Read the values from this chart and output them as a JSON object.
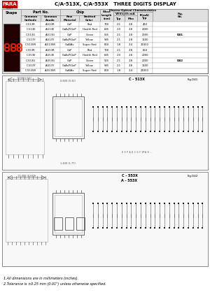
{
  "title": "C/A-513X, C/A-553X   THREE DIGITS DISPLAY",
  "company": "PARA",
  "bg_color": "#ffffff",
  "rows_d41": [
    [
      "C-513R",
      "A-513R",
      "GaP",
      "Red",
      "700",
      "2.1",
      "2.8",
      "450",
      "D41"
    ],
    [
      "C-513E",
      "A-513E",
      "GaAsP/GaP",
      "Health Red",
      "635",
      "2.0",
      "2.8",
      "2000",
      ""
    ],
    [
      "C-513G",
      "A-513G",
      "GaP",
      "Green",
      "565",
      "2.1",
      "2.8",
      "2000",
      ""
    ],
    [
      "C-513Y",
      "A-513Y",
      "GaAsP/GaP",
      "Yellow",
      "585",
      "2.1",
      "2.8",
      "1600",
      ""
    ],
    [
      "C-513SR",
      "A-513SR",
      "GaAlAs",
      "Super Red",
      "660",
      "1.8",
      "2.4",
      "21000",
      ""
    ]
  ],
  "rows_d42": [
    [
      "C-553R",
      "A-553R",
      "GaP",
      "Red",
      "700",
      "2.1",
      "2.8",
      "650",
      "D42"
    ],
    [
      "C-553E",
      "A-553E",
      "GaAsP/GaP",
      "Health Red",
      "635",
      "2.0",
      "2.8",
      "2000",
      ""
    ],
    [
      "C-553G",
      "A-553G",
      "GaP",
      "Green",
      "565",
      "2.1",
      "2.8",
      "2000",
      ""
    ],
    [
      "C-553Y",
      "A-553Y",
      "GaAsP/GaP",
      "Yellow",
      "585",
      "2.1",
      "2.8",
      "1600",
      ""
    ],
    [
      "C-553SR",
      "A-553SR",
      "GaAlAs",
      "Super Red",
      "660",
      "1.8",
      "2.4",
      "21000",
      ""
    ]
  ],
  "notes": [
    "1.All dimensions are in millimeters (inches).",
    "2.Tolerance is ±0.25 mm (0.01\") unless otherwise specified."
  ],
  "logo_red": "#cc0000",
  "display_red": "#ff2200"
}
